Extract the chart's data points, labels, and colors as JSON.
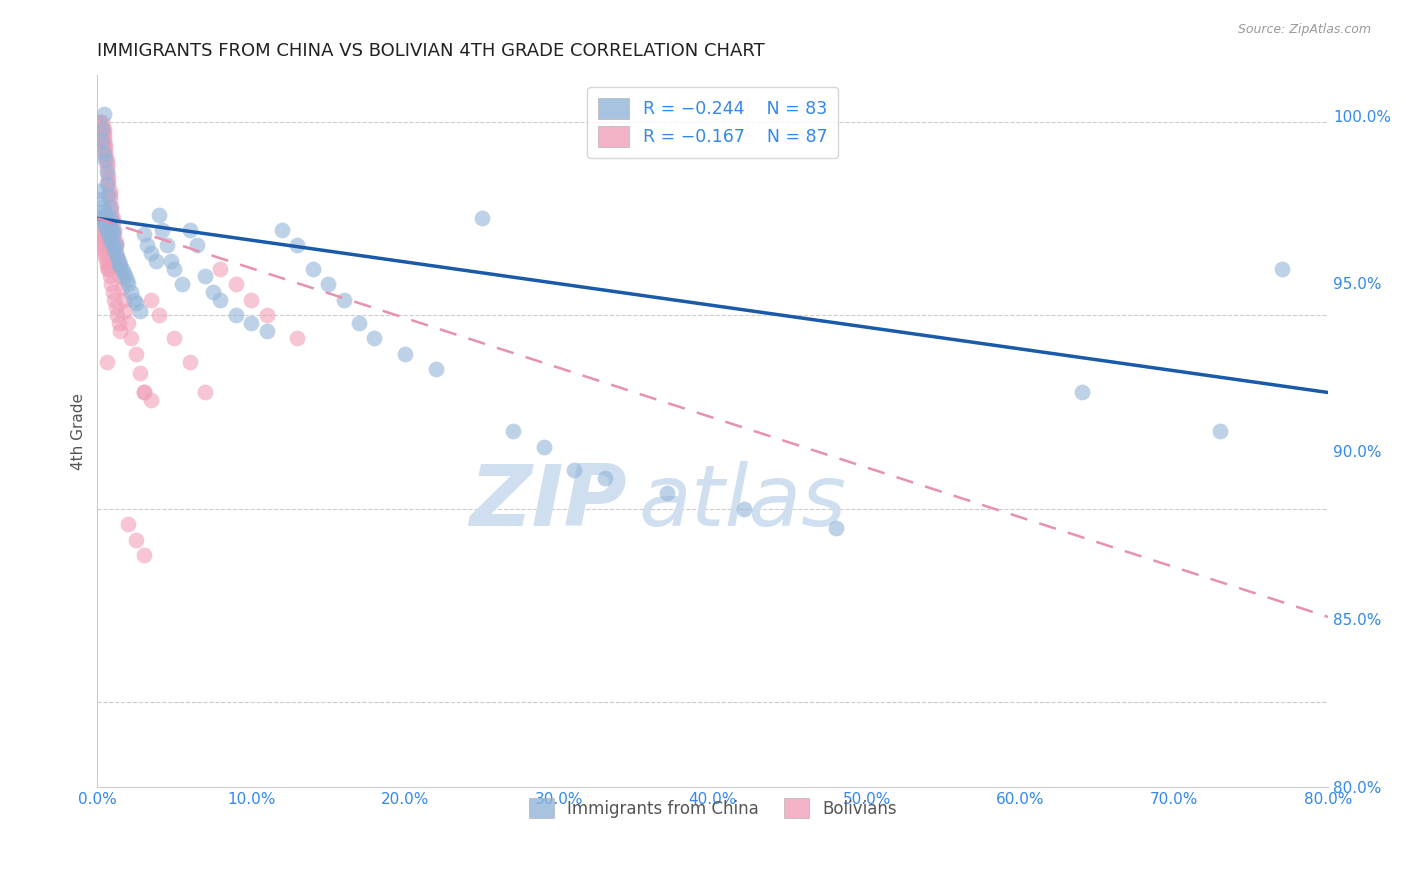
{
  "title": "IMMIGRANTS FROM CHINA VS BOLIVIAN 4TH GRADE CORRELATION CHART",
  "source": "Source: ZipAtlas.com",
  "ylabel": "4th Grade",
  "xlim": [
    0.0,
    0.8
  ],
  "ylim": [
    0.828,
    1.012
  ],
  "xtick_labels": [
    "0.0%",
    "10.0%",
    "20.0%",
    "30.0%",
    "40.0%",
    "50.0%",
    "60.0%",
    "70.0%",
    "80.0%"
  ],
  "xtick_vals": [
    0.0,
    0.1,
    0.2,
    0.3,
    0.4,
    0.5,
    0.6,
    0.7,
    0.8
  ],
  "ytick_labels": [
    "80.0%",
    "85.0%",
    "90.0%",
    "95.0%",
    "100.0%"
  ],
  "ytick_vals": [
    0.8,
    0.85,
    0.9,
    0.95,
    1.0
  ],
  "legend_blue_label": "Immigrants from China",
  "legend_pink_label": "Bolivians",
  "legend_r_blue": "-0.244",
  "legend_n_blue": "N = 83",
  "legend_r_pink": "-0.167",
  "legend_n_pink": "N = 87",
  "blue_color": "#92b4d8",
  "pink_color": "#f0a0b8",
  "trend_blue_color": "#1a5aaa",
  "trend_pink_color": "#e890b0",
  "watermark_color": "#d0dff0",
  "background_color": "#ffffff",
  "grid_color": "#cccccc",
  "right_axis_color": "#3388ee",
  "title_color": "#222222",
  "blue_trend_x0": 0.0,
  "blue_trend_y0": 0.975,
  "blue_trend_x1": 0.8,
  "blue_trend_y1": 0.93,
  "pink_trend_x0": 0.0,
  "pink_trend_y0": 0.975,
  "pink_trend_x1": 0.8,
  "pink_trend_y1": 0.872,
  "blue_scatter_x": [
    0.001,
    0.002,
    0.003,
    0.003,
    0.004,
    0.004,
    0.005,
    0.005,
    0.006,
    0.006,
    0.007,
    0.007,
    0.008,
    0.008,
    0.009,
    0.009,
    0.01,
    0.01,
    0.011,
    0.012,
    0.013,
    0.014,
    0.015,
    0.016,
    0.017,
    0.018,
    0.019,
    0.02,
    0.022,
    0.024,
    0.025,
    0.028,
    0.03,
    0.032,
    0.035,
    0.038,
    0.04,
    0.042,
    0.045,
    0.048,
    0.05,
    0.055,
    0.06,
    0.065,
    0.07,
    0.075,
    0.08,
    0.09,
    0.1,
    0.11,
    0.12,
    0.13,
    0.14,
    0.15,
    0.16,
    0.17,
    0.18,
    0.2,
    0.22,
    0.25,
    0.27,
    0.29,
    0.31,
    0.33,
    0.37,
    0.42,
    0.48,
    0.64,
    0.73,
    0.77,
    0.003,
    0.003,
    0.004,
    0.005,
    0.006,
    0.006,
    0.007,
    0.008,
    0.009,
    0.01,
    0.012,
    0.014,
    0.004
  ],
  "blue_scatter_y": [
    0.982,
    0.98,
    0.975,
    0.978,
    0.974,
    0.977,
    0.973,
    0.976,
    0.972,
    0.975,
    0.971,
    0.974,
    0.97,
    0.973,
    0.969,
    0.972,
    0.968,
    0.971,
    0.967,
    0.966,
    0.965,
    0.964,
    0.963,
    0.962,
    0.961,
    0.96,
    0.959,
    0.958,
    0.956,
    0.954,
    0.953,
    0.951,
    0.971,
    0.968,
    0.966,
    0.964,
    0.976,
    0.972,
    0.968,
    0.964,
    0.962,
    0.958,
    0.972,
    0.968,
    0.96,
    0.956,
    0.954,
    0.95,
    0.948,
    0.946,
    0.972,
    0.968,
    0.962,
    0.958,
    0.954,
    0.948,
    0.944,
    0.94,
    0.936,
    0.975,
    0.92,
    0.916,
    0.91,
    0.908,
    0.904,
    0.9,
    0.895,
    0.93,
    0.92,
    0.962,
    0.998,
    0.995,
    0.992,
    0.99,
    0.987,
    0.984,
    0.981,
    0.978,
    0.975,
    0.972,
    0.968,
    0.963,
    1.002
  ],
  "pink_scatter_x": [
    0.001,
    0.001,
    0.002,
    0.002,
    0.002,
    0.002,
    0.003,
    0.003,
    0.003,
    0.003,
    0.003,
    0.003,
    0.003,
    0.004,
    0.004,
    0.004,
    0.004,
    0.004,
    0.005,
    0.005,
    0.005,
    0.005,
    0.006,
    0.006,
    0.006,
    0.007,
    0.007,
    0.007,
    0.008,
    0.008,
    0.008,
    0.009,
    0.009,
    0.01,
    0.01,
    0.011,
    0.011,
    0.012,
    0.012,
    0.013,
    0.014,
    0.015,
    0.016,
    0.017,
    0.018,
    0.02,
    0.022,
    0.025,
    0.028,
    0.03,
    0.035,
    0.04,
    0.05,
    0.06,
    0.07,
    0.08,
    0.09,
    0.1,
    0.11,
    0.13,
    0.002,
    0.002,
    0.003,
    0.003,
    0.003,
    0.004,
    0.004,
    0.005,
    0.005,
    0.006,
    0.006,
    0.007,
    0.008,
    0.009,
    0.01,
    0.011,
    0.012,
    0.013,
    0.014,
    0.015,
    0.006,
    0.007,
    0.02,
    0.025,
    0.03,
    0.03,
    0.035
  ],
  "pink_scatter_y": [
    1.0,
    0.999,
    1.0,
    0.999,
    0.998,
    0.997,
    1.0,
    0.999,
    0.998,
    0.997,
    0.996,
    0.995,
    0.994,
    0.998,
    0.997,
    0.996,
    0.995,
    0.994,
    0.994,
    0.993,
    0.992,
    0.991,
    0.99,
    0.989,
    0.988,
    0.986,
    0.985,
    0.984,
    0.982,
    0.981,
    0.98,
    0.978,
    0.977,
    0.975,
    0.974,
    0.972,
    0.971,
    0.969,
    0.968,
    0.965,
    0.963,
    0.96,
    0.957,
    0.954,
    0.951,
    0.948,
    0.944,
    0.94,
    0.935,
    0.93,
    0.954,
    0.95,
    0.944,
    0.938,
    0.93,
    0.962,
    0.958,
    0.954,
    0.95,
    0.944,
    0.973,
    0.972,
    0.971,
    0.97,
    0.969,
    0.968,
    0.967,
    0.966,
    0.965,
    0.964,
    0.963,
    0.962,
    0.96,
    0.958,
    0.956,
    0.954,
    0.952,
    0.95,
    0.948,
    0.946,
    0.938,
    0.962,
    0.896,
    0.892,
    0.888,
    0.93,
    0.928
  ]
}
